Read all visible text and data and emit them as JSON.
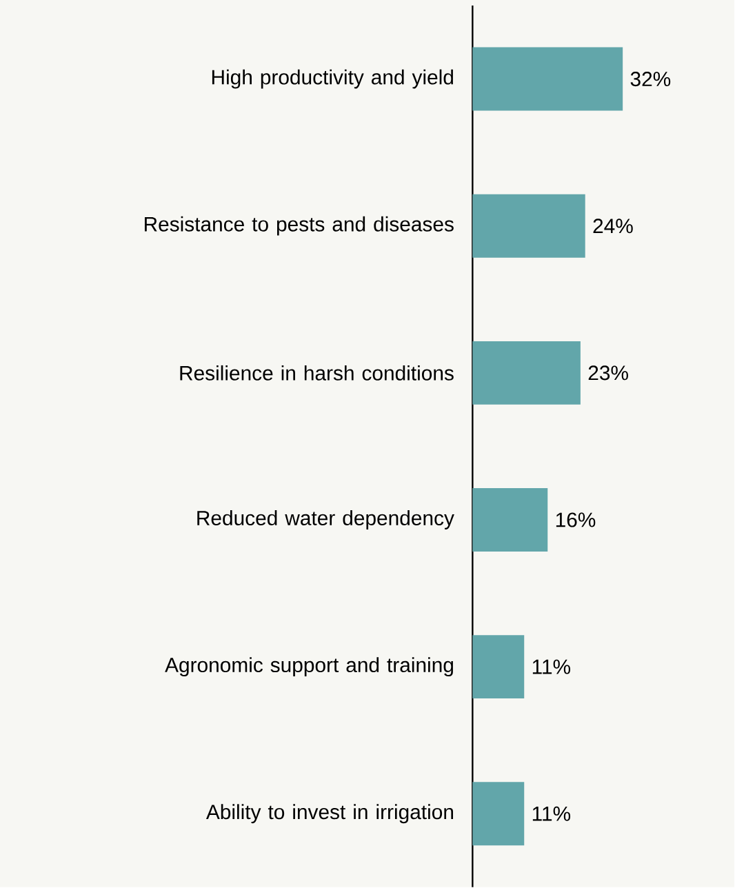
{
  "chart_data": {
    "type": "bar",
    "orientation": "horizontal",
    "categories": [
      "High productivity and yield",
      "Resistance to pests and diseases",
      "Resilience in harsh conditions",
      "Reduced water dependency",
      "Agronomic support and training",
      "Ability to invest in irrigation"
    ],
    "values": [
      32,
      24,
      23,
      16,
      11,
      11
    ],
    "value_labels": [
      "32%",
      "24%",
      "23%",
      "16%",
      "11%",
      "11%"
    ],
    "color": "#62a6aa"
  }
}
